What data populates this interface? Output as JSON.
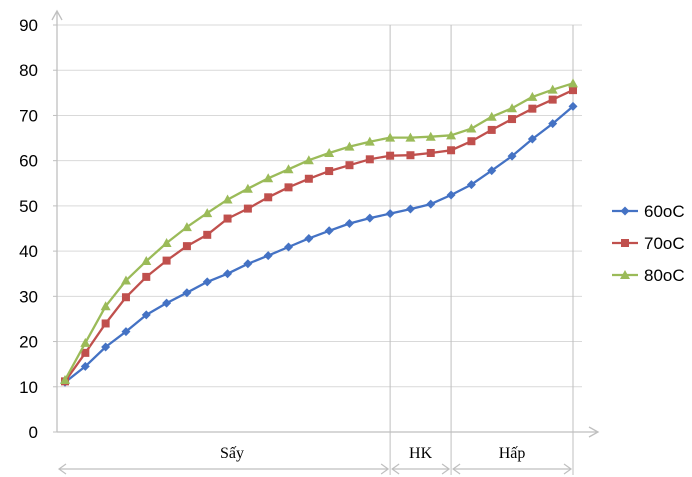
{
  "chart_data": {
    "type": "line",
    "title": "",
    "xlabel": "",
    "ylabel": "",
    "ylim": [
      0,
      90
    ],
    "y_ticks": [
      0,
      10,
      20,
      30,
      40,
      50,
      60,
      70,
      80,
      90
    ],
    "grid": "horizontal",
    "legend_position": "right",
    "phase_labels": [
      "Sấy",
      "HK",
      "Hấp"
    ],
    "series": [
      {
        "name": "60oC",
        "color": "#4472c4",
        "marker": "diamond",
        "values": [
          11,
          14.5,
          18.8,
          22.2,
          25.9,
          28.5,
          30.8,
          33.2,
          35,
          37.2,
          39,
          40.9,
          42.8,
          44.5,
          46.1,
          47.3,
          48.3,
          49.3,
          50.4,
          52.4,
          54.7,
          57.8,
          61,
          64.8,
          68.2,
          72
        ]
      },
      {
        "name": "70oC",
        "color": "#c0504d",
        "marker": "square",
        "values": [
          11.2,
          17.5,
          24,
          29.8,
          34.3,
          37.9,
          41.1,
          43.6,
          47.2,
          49.4,
          51.9,
          54.1,
          56,
          57.7,
          59,
          60.3,
          61.1,
          61.2,
          61.7,
          62.3,
          64.3,
          66.8,
          69.2,
          71.5,
          73.5,
          75.6
        ]
      },
      {
        "name": "80oC",
        "color": "#9bbb59",
        "marker": "triangle",
        "values": [
          11.5,
          19.7,
          27.8,
          33.5,
          37.8,
          41.8,
          45.3,
          48.4,
          51.4,
          53.8,
          56.1,
          58.1,
          60.1,
          61.7,
          63.1,
          64.2,
          65.1,
          65.1,
          65.3,
          65.6,
          67.1,
          69.7,
          71.6,
          74.1,
          75.7,
          77.1
        ]
      }
    ]
  }
}
